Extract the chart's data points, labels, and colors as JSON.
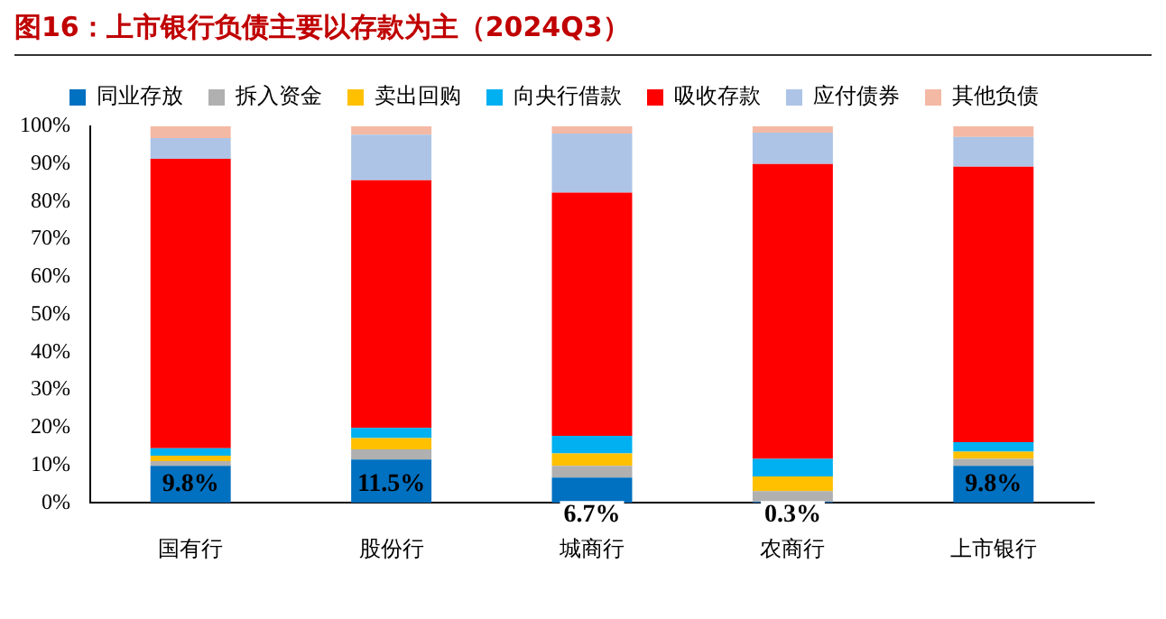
{
  "chart_data": {
    "type": "bar",
    "stacked": true,
    "title": "图16：上市银行负债主要以存款为主（2024Q3）",
    "categories": [
      "国有行",
      "股份行",
      "城商行",
      "农商行",
      "上市银行"
    ],
    "series": [
      {
        "name": "同业存放",
        "color": "#0070c0",
        "values": [
          9.8,
          11.5,
          6.7,
          0.3,
          9.8
        ],
        "value_labels": [
          "9.8%",
          "11.5%",
          "6.7%",
          "0.3%",
          "9.8%"
        ]
      },
      {
        "name": "拆入资金",
        "color": "#b0b0b0",
        "values": [
          1.3,
          2.7,
          3.1,
          2.8,
          1.9
        ]
      },
      {
        "name": "卖出回购",
        "color": "#ffc000",
        "values": [
          1.4,
          3.0,
          3.3,
          3.9,
          1.9
        ]
      },
      {
        "name": "向央行借款",
        "color": "#00b0f0",
        "values": [
          2.0,
          2.7,
          4.7,
          4.7,
          2.5
        ]
      },
      {
        "name": "吸收存款",
        "color": "#ff0000",
        "values": [
          76.9,
          65.8,
          64.6,
          78.3,
          73.2
        ]
      },
      {
        "name": "应付债券",
        "color": "#adc4e6",
        "values": [
          5.5,
          12.1,
          15.7,
          8.3,
          7.9
        ]
      },
      {
        "name": "其他负债",
        "color": "#f4b9a4",
        "values": [
          3.1,
          2.2,
          1.9,
          1.7,
          2.8
        ]
      }
    ],
    "ylim": [
      0,
      100
    ],
    "yticks": [
      {
        "value": 0,
        "label": "0%"
      },
      {
        "value": 10,
        "label": "10%"
      },
      {
        "value": 20,
        "label": "20%"
      },
      {
        "value": 30,
        "label": "30%"
      },
      {
        "value": 40,
        "label": "40%"
      },
      {
        "value": 50,
        "label": "50%"
      },
      {
        "value": 60,
        "label": "60%"
      },
      {
        "value": 70,
        "label": "70%"
      },
      {
        "value": 80,
        "label": "80%"
      },
      {
        "value": 90,
        "label": "90%"
      },
      {
        "value": 100,
        "label": "100%"
      }
    ],
    "grid": false,
    "legend": "top"
  }
}
